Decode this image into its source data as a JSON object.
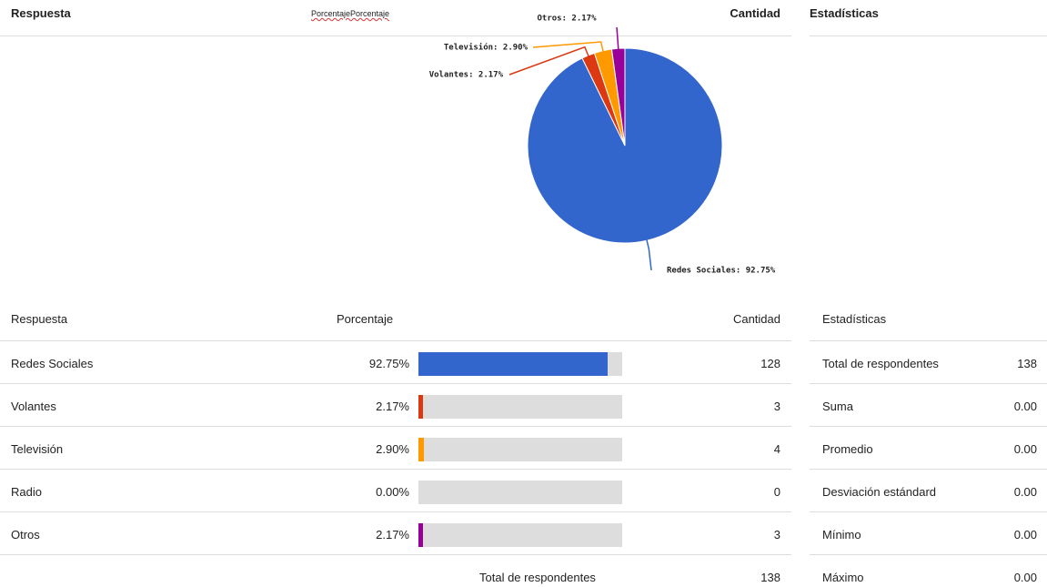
{
  "header": {
    "respuesta": "Respuesta",
    "porcentaje": "PorcentajePorcentaje",
    "cantidad": "Cantidad",
    "estadisticas": "Estadísticas"
  },
  "chart_data": {
    "type": "pie",
    "categories": [
      "Redes Sociales",
      "Volantes",
      "Televisión",
      "Radio",
      "Otros"
    ],
    "values": [
      92.75,
      2.17,
      2.9,
      0,
      2.17
    ],
    "value_labels": [
      "Redes Sociales: 92.75%",
      "Volantes: 2.17%",
      "Televisión: 2.90%",
      null,
      "Otros: 2.17%"
    ],
    "colors": [
      "#3366cc",
      "#dc3912",
      "#ff9900",
      "#109618",
      "#990099"
    ]
  },
  "table": {
    "columns": [
      "Respuesta",
      "Porcentaje",
      "Cantidad"
    ],
    "rows": [
      [
        "Redes Sociales",
        "92.75%",
        128
      ],
      [
        "Volantes",
        "2.17%",
        3
      ],
      [
        "Televisión",
        "2.90%",
        4
      ],
      [
        "Radio",
        "0.00%",
        0
      ],
      [
        "Otros",
        "2.17%",
        3
      ]
    ],
    "footer": {
      "label": "Total de respondentes",
      "value": 138
    }
  },
  "stats": {
    "title": "Estadísticas",
    "rows": [
      [
        "Total de respondentes",
        138
      ],
      [
        "Suma",
        "0.00"
      ],
      [
        "Promedio",
        "0.00"
      ],
      [
        "Desviación estándard",
        "0.00"
      ],
      [
        "Mínimo",
        "0.00"
      ],
      [
        "Máximo",
        "0.00"
      ]
    ]
  }
}
